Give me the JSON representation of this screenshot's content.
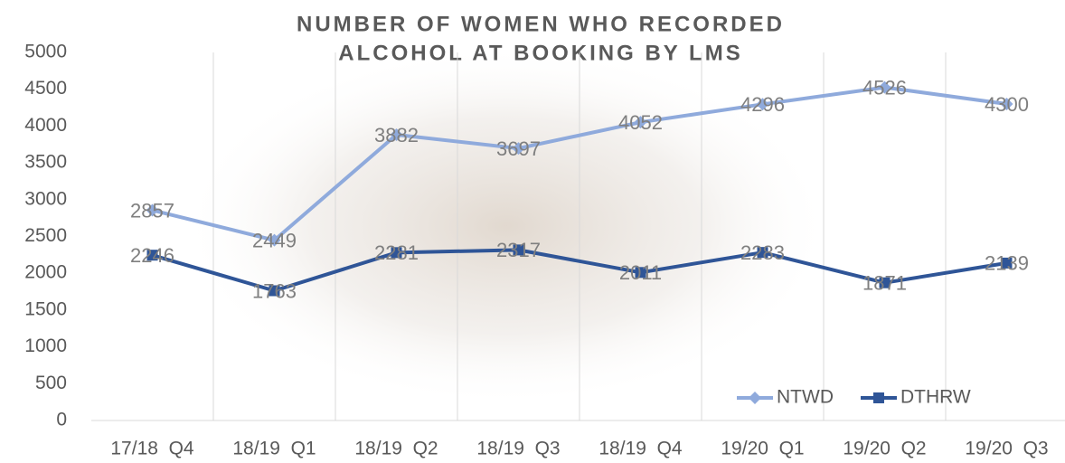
{
  "chart_data": {
    "type": "line",
    "title": [
      "NUMBER OF WOMEN WHO RECORDED",
      "ALCOHOL AT BOOKING BY LMS"
    ],
    "categories": [
      "17/18  Q4",
      "18/19  Q1",
      "18/19  Q2",
      "18/19  Q3",
      "18/19  Q4",
      "19/20  Q1",
      "19/20  Q2",
      "19/20  Q3"
    ],
    "series": [
      {
        "name": "NTWD",
        "color": "#8faadc",
        "marker": "diamond",
        "values": [
          2857,
          2449,
          3882,
          3697,
          4052,
          4296,
          4526,
          4300
        ]
      },
      {
        "name": "DTHRW",
        "color": "#2f5597",
        "marker": "square",
        "values": [
          2246,
          1763,
          2281,
          2317,
          2011,
          2283,
          1871,
          2139
        ]
      }
    ],
    "ylim": [
      0,
      5000
    ],
    "yticks": [
      0,
      500,
      1000,
      1500,
      2000,
      2500,
      3000,
      3500,
      4000,
      4500,
      5000
    ],
    "grid": "vertical",
    "legend": "lower right"
  }
}
